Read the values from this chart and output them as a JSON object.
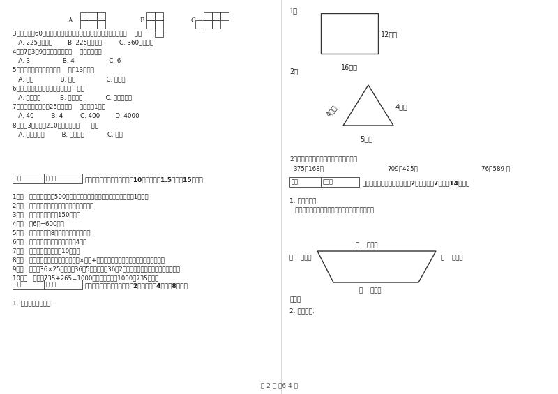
{
  "bg_color": "#ffffff",
  "text_color": "#333333",
  "page_width": 8.0,
  "page_height": 5.65,
  "dpi": 100,
  "footer_text": "第 2 页 兲6 4 页",
  "left_col": {
    "section3_title": "三、仔细推敬，正确判断（共10小题，每题1.5分，入15分）。",
    "section4_title": "四、看清题目，细心计算（割2小题，每题4分，內8分）。",
    "section4_q1": "1. 求下面图形的周长.",
    "items_q3_to_q8": [
      "3．把一根长60厘米的鐵丝围成一个正方形，这个正方形的面积是（    ）。",
      "   A. 225平方分米        B. 225平方厘米         C. 360平方厘米",
      "4．用7、3、9三个数字可组成（    ）个三位数。",
      "   A. 3                 B. 4                  C. 6",
      "5．按农历计算，有的年份（    ）有13个月。",
      "   A. 一定              B. 可能                C. 不可能",
      "6．下面现象中属于平移现象的是（   ）。",
      "   A. 开关抽屉          B. 拧开瓶盖            C. 转动的风车",
      "7．平均每个同学体重25千克，（    ）名同学1吨。",
      "   A. 40         B. 4         C. 400        D. 4000",
      "8．爸爸3小时行了210千米，他是（      ）。",
      "   A. 乘公共汽车         B. 骑自行车            C. 步行"
    ],
    "judge_items": [
      "1．（   ）小明家离学校500米，他每天上学、回家，一个来回一共要走1千米。",
      "2．（   ）长方形的周长就是它四条边长度的和。",
      "3．（   ）一本故事书约重150千克。",
      "4．（   ）6分=600秒。",
      "5．（   ）一个两位时8，积一定也是两为数。",
      "6．（   ）正方形的周长是它的边长的4倍。",
      "7．（   ）小明家客厅面积是10公顿。",
      "8．（   ）有余数除法的验算方法是「商×除数+余数」，看得到的结果是否与被除数相等。",
      "9．（   ）计算36×25时，先把36和5相乘，再把36和2相乘，最后把两次乘积的结果相加。",
      "10．（   ）根据735+265=1000，可以直接写出1000－735的差。"
    ]
  },
  "right_col": {
    "calc_label": "2、竖式计算。要求验算的请写出验算。",
    "calc_items": [
      "375＋168＝",
      "709－425＝",
      "76＋589 ＝"
    ],
    "section5_title": "五、认真思考，综合能力（割2小题，每题7分，入14分）。",
    "section5_q1": "1. 动手操作。",
    "section5_q1_desc": "   量出每条边的长度，以毫米为单位，并计算周长。",
    "section5_q2": "2. 看图填空:",
    "zhou_label": "周长：",
    "mm_label": "（    ）毫米"
  },
  "score_box": {
    "label1": "得分",
    "label2": "评卷人"
  }
}
